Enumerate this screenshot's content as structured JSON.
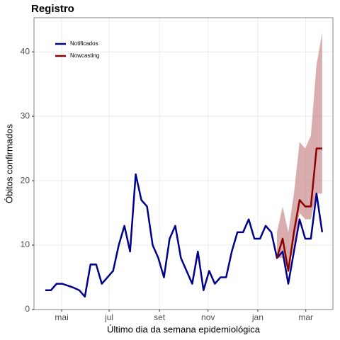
{
  "chart_data": {
    "type": "line",
    "title": "Registro",
    "xlabel": "Último dia da semana epidemiológica",
    "ylabel": "Óbitos confirmados",
    "x": [
      1,
      2,
      3,
      4,
      5,
      6,
      7,
      8,
      9,
      10,
      11,
      12,
      13,
      14,
      15,
      16,
      17,
      18,
      19,
      20,
      21,
      22,
      23,
      24,
      25,
      26,
      27,
      28,
      29,
      30,
      31,
      32,
      33,
      34,
      35,
      36,
      37,
      38,
      39,
      40,
      41,
      42,
      43,
      44,
      45,
      46,
      47,
      48,
      49,
      50
    ],
    "series": [
      {
        "name": "Notificados",
        "color": "#00008b",
        "values": [
          3,
          3,
          4,
          4,
          3.7,
          3.4,
          3,
          2,
          7,
          7,
          4,
          5,
          6,
          10,
          13,
          9,
          21,
          17,
          16,
          10,
          8,
          5,
          11,
          13,
          8,
          6,
          4,
          9,
          3,
          6,
          4,
          5,
          5,
          9,
          12,
          12,
          14,
          11,
          11,
          13,
          12,
          8,
          9,
          4,
          9,
          14,
          11,
          11,
          18,
          12
        ]
      },
      {
        "name": "Nowcasting",
        "color": "#8b0000",
        "band_color": "#c98a8a",
        "values": [
          null,
          null,
          null,
          null,
          null,
          null,
          null,
          null,
          null,
          null,
          null,
          null,
          null,
          null,
          null,
          null,
          null,
          null,
          null,
          null,
          null,
          null,
          null,
          null,
          null,
          null,
          null,
          null,
          null,
          null,
          null,
          null,
          null,
          null,
          null,
          null,
          null,
          null,
          null,
          null,
          null,
          8,
          11,
          6,
          12,
          17,
          16,
          16,
          25,
          25
        ],
        "lower": [
          null,
          null,
          null,
          null,
          null,
          null,
          null,
          null,
          null,
          null,
          null,
          null,
          null,
          null,
          null,
          null,
          null,
          null,
          null,
          null,
          null,
          null,
          null,
          null,
          null,
          null,
          null,
          null,
          null,
          null,
          null,
          null,
          null,
          null,
          null,
          null,
          null,
          null,
          null,
          null,
          null,
          8,
          8,
          6,
          10,
          15,
          14,
          14,
          18,
          18
        ],
        "upper": [
          null,
          null,
          null,
          null,
          null,
          null,
          null,
          null,
          null,
          null,
          null,
          null,
          null,
          null,
          null,
          null,
          null,
          null,
          null,
          null,
          null,
          null,
          null,
          null,
          null,
          null,
          null,
          null,
          null,
          null,
          null,
          null,
          null,
          null,
          null,
          null,
          null,
          null,
          null,
          null,
          null,
          12,
          16,
          12,
          18,
          26,
          25,
          27,
          38,
          43
        ]
      }
    ],
    "xlim": [
      -1,
      51.9
    ],
    "xticks": [
      {
        "value": 3.9,
        "label": "mai"
      },
      {
        "value": 12.3,
        "label": "jul"
      },
      {
        "value": 21.2,
        "label": "set"
      },
      {
        "value": 29.8,
        "label": "nov"
      },
      {
        "value": 38.6,
        "label": "jan"
      },
      {
        "value": 47.1,
        "label": "mar"
      }
    ],
    "ylim": [
      0,
      45.3
    ],
    "yticks": [
      0,
      10,
      20,
      30,
      40
    ],
    "grid": true,
    "legend": "top-left"
  }
}
